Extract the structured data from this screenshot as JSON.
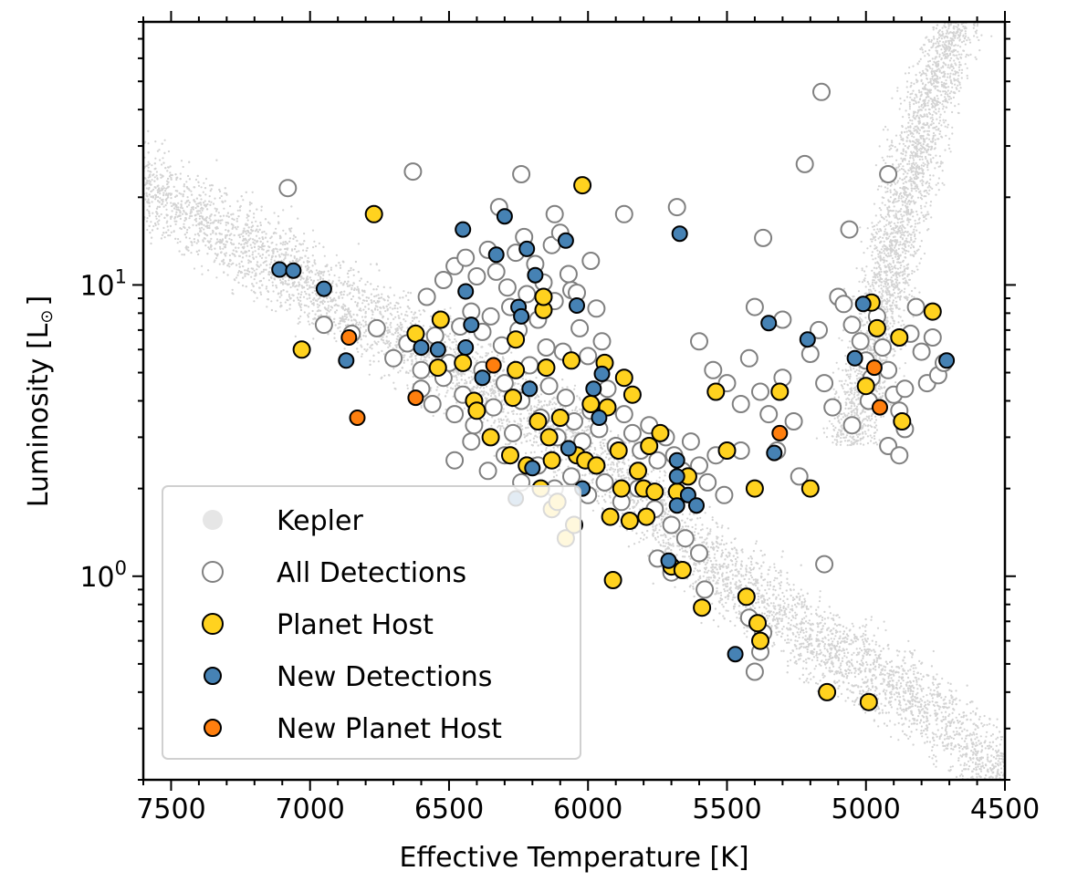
{
  "chart_data": {
    "type": "scatter",
    "title": "",
    "xlabel": "Effective Temperature [K]",
    "ylabel": "Luminosity [L",
    "ylabel_symbol": "⊙",
    "ylabel_close": "]",
    "x_reversed": true,
    "xlim": [
      7600,
      4500
    ],
    "ylim": [
      0.2,
      80
    ],
    "yscale": "log",
    "xticks": [
      7500,
      7000,
      6500,
      6000,
      5500,
      5000,
      4500
    ],
    "ytick_labels": [
      {
        "value": 1,
        "base": "10",
        "exp": "0"
      },
      {
        "value": 10,
        "base": "10",
        "exp": "1"
      }
    ],
    "legend_position": "lower-left",
    "series": [
      {
        "name": "Kepler",
        "key": "kepler",
        "color": "#d3d3d3",
        "edge": "none",
        "style": "background-dots"
      },
      {
        "name": "All Detections",
        "key": "all",
        "color": "#ffffff",
        "edge": "#808080",
        "points": [
          [
            7080,
            21.5
          ],
          [
            6630,
            24.5
          ],
          [
            6240,
            24
          ],
          [
            6320,
            18.5
          ],
          [
            6120,
            17.5
          ],
          [
            5680,
            18.5
          ],
          [
            5870,
            17.5
          ],
          [
            5370,
            14.5
          ],
          [
            5220,
            26
          ],
          [
            5160,
            46
          ],
          [
            4920,
            24
          ],
          [
            5060,
            15.5
          ],
          [
            6950,
            7.3
          ],
          [
            6850,
            6.8
          ],
          [
            6760,
            7.1
          ],
          [
            6700,
            5.6
          ],
          [
            6650,
            6.3
          ],
          [
            6600,
            5.1
          ],
          [
            6550,
            6.7
          ],
          [
            6500,
            5.4
          ],
          [
            6460,
            7.2
          ],
          [
            6420,
            8.1
          ],
          [
            6380,
            6.9
          ],
          [
            6350,
            7.8
          ],
          [
            6310,
            6.2
          ],
          [
            6280,
            8.4
          ],
          [
            6250,
            7.0
          ],
          [
            6220,
            9.3
          ],
          [
            6180,
            7.6
          ],
          [
            6150,
            6.1
          ],
          [
            6120,
            8.8
          ],
          [
            6090,
            5.9
          ],
          [
            6060,
            9.6
          ],
          [
            6030,
            7.1
          ],
          [
            6000,
            5.7
          ],
          [
            5970,
            8.3
          ],
          [
            5950,
            6.4
          ],
          [
            6580,
            9.1
          ],
          [
            6520,
            10.4
          ],
          [
            6480,
            11.6
          ],
          [
            6440,
            12.4
          ],
          [
            6400,
            10.7
          ],
          [
            6360,
            13.2
          ],
          [
            6330,
            11.1
          ],
          [
            6290,
            9.8
          ],
          [
            6260,
            12.9
          ],
          [
            6230,
            14.6
          ],
          [
            6190,
            11.8
          ],
          [
            6160,
            10.2
          ],
          [
            6130,
            13.7
          ],
          [
            6100,
            15.1
          ],
          [
            6070,
            10.9
          ],
          [
            6040,
            9.4
          ],
          [
            5990,
            12.1
          ],
          [
            6600,
            4.4
          ],
          [
            6560,
            3.9
          ],
          [
            6520,
            4.8
          ],
          [
            6480,
            3.6
          ],
          [
            6450,
            4.2
          ],
          [
            6410,
            3.3
          ],
          [
            6380,
            5.1
          ],
          [
            6340,
            3.8
          ],
          [
            6300,
            4.6
          ],
          [
            6270,
            3.1
          ],
          [
            6240,
            4.0
          ],
          [
            6210,
            5.3
          ],
          [
            6170,
            3.5
          ],
          [
            6140,
            4.5
          ],
          [
            6110,
            3.0
          ],
          [
            6080,
            4.1
          ],
          [
            6050,
            3.4
          ],
          [
            6020,
            2.9
          ],
          [
            5990,
            3.7
          ],
          [
            5960,
            3.2
          ],
          [
            5930,
            4.4
          ],
          [
            5900,
            2.8
          ],
          [
            5870,
            3.6
          ],
          [
            5840,
            3.1
          ],
          [
            5810,
            2.7
          ],
          [
            5780,
            3.3
          ],
          [
            5750,
            2.5
          ],
          [
            5720,
            3.0
          ],
          [
            5690,
            2.6
          ],
          [
            5660,
            2.3
          ],
          [
            5630,
            2.9
          ],
          [
            5600,
            2.4
          ],
          [
            5570,
            2.1
          ],
          [
            5540,
            2.6
          ],
          [
            5510,
            1.9
          ],
          [
            6480,
            2.5
          ],
          [
            6420,
            2.9
          ],
          [
            6360,
            2.3
          ],
          [
            6300,
            2.6
          ],
          [
            6240,
            2.1
          ],
          [
            6180,
            2.4
          ],
          [
            6120,
            2.0
          ],
          [
            6060,
            2.2
          ],
          [
            6000,
            1.9
          ],
          [
            5940,
            2.1
          ],
          [
            5880,
            1.8
          ],
          [
            5820,
            2.0
          ],
          [
            5760,
            1.7
          ],
          [
            5700,
            1.5
          ],
          [
            5650,
            1.35
          ],
          [
            5600,
            1.2
          ],
          [
            5750,
            1.15
          ],
          [
            5700,
            1.03
          ],
          [
            5580,
            0.9
          ],
          [
            5420,
            0.72
          ],
          [
            5370,
            0.64
          ],
          [
            5380,
            0.55
          ],
          [
            5400,
            0.47
          ],
          [
            5150,
            1.1
          ],
          [
            5600,
            6.4
          ],
          [
            5550,
            5.1
          ],
          [
            5500,
            4.6
          ],
          [
            5450,
            3.9
          ],
          [
            5420,
            5.6
          ],
          [
            5380,
            4.3
          ],
          [
            5350,
            3.6
          ],
          [
            5320,
            2.7
          ],
          [
            5300,
            4.8
          ],
          [
            5260,
            3.4
          ],
          [
            5240,
            2.2
          ],
          [
            5400,
            8.4
          ],
          [
            5300,
            7.6
          ],
          [
            5450,
            2.7
          ],
          [
            5100,
            9.1
          ],
          [
            5080,
            8.6
          ],
          [
            5050,
            7.3
          ],
          [
            5020,
            6.4
          ],
          [
            5000,
            5.5
          ],
          [
            4980,
            4.8
          ],
          [
            4960,
            7.8
          ],
          [
            4940,
            6.1
          ],
          [
            4920,
            5.1
          ],
          [
            4900,
            4.2
          ],
          [
            4880,
            3.7
          ],
          [
            4860,
            3.2
          ],
          [
            4840,
            6.8
          ],
          [
            4820,
            8.4
          ],
          [
            4800,
            5.9
          ],
          [
            4780,
            4.6
          ],
          [
            4760,
            6.6
          ],
          [
            4740,
            4.9
          ],
          [
            4720,
            5.4
          ],
          [
            5150,
            4.6
          ],
          [
            5120,
            3.8
          ],
          [
            5050,
            3.3
          ],
          [
            4990,
            4.0
          ],
          [
            4920,
            2.8
          ],
          [
            4880,
            2.6
          ],
          [
            5200,
            5.8
          ],
          [
            5170,
            7.0
          ],
          [
            4860,
            4.4
          ]
        ]
      },
      {
        "name": "Planet Host",
        "key": "host",
        "color": "#ffd21f",
        "edge": "#000000",
        "points": [
          [
            6020,
            22
          ],
          [
            6770,
            17.5
          ],
          [
            7030,
            6.0
          ],
          [
            6620,
            6.8
          ],
          [
            6530,
            7.6
          ],
          [
            6540,
            5.2
          ],
          [
            6450,
            5.4
          ],
          [
            6410,
            4.0
          ],
          [
            6400,
            3.7
          ],
          [
            6350,
            3.0
          ],
          [
            6280,
            2.6
          ],
          [
            6270,
            4.1
          ],
          [
            6260,
            5.1
          ],
          [
            6260,
            6.5
          ],
          [
            6220,
            2.4
          ],
          [
            6180,
            3.4
          ],
          [
            6170,
            2.0
          ],
          [
            6160,
            8.2
          ],
          [
            6160,
            9.1
          ],
          [
            6150,
            5.2
          ],
          [
            6140,
            3.0
          ],
          [
            6130,
            2.5
          ],
          [
            6130,
            1.7
          ],
          [
            6110,
            1.8
          ],
          [
            6100,
            3.5
          ],
          [
            6080,
            1.35
          ],
          [
            6060,
            5.5
          ],
          [
            6050,
            1.5
          ],
          [
            6040,
            2.6
          ],
          [
            6010,
            2.5
          ],
          [
            5990,
            3.9
          ],
          [
            5970,
            2.4
          ],
          [
            5940,
            5.4
          ],
          [
            5930,
            3.8
          ],
          [
            5920,
            1.6
          ],
          [
            5910,
            0.97
          ],
          [
            5890,
            2.7
          ],
          [
            5880,
            2.0
          ],
          [
            5870,
            4.8
          ],
          [
            5850,
            1.55
          ],
          [
            5840,
            4.2
          ],
          [
            5820,
            2.3
          ],
          [
            5800,
            2.0
          ],
          [
            5790,
            1.6
          ],
          [
            5780,
            2.8
          ],
          [
            5760,
            1.95
          ],
          [
            5740,
            3.1
          ],
          [
            5700,
            1.08
          ],
          [
            5680,
            1.95
          ],
          [
            5660,
            1.05
          ],
          [
            5640,
            2.2
          ],
          [
            5590,
            0.78
          ],
          [
            5540,
            4.3
          ],
          [
            5500,
            2.7
          ],
          [
            5430,
            0.85
          ],
          [
            5400,
            2.0
          ],
          [
            5390,
            0.69
          ],
          [
            5380,
            0.6
          ],
          [
            5310,
            4.3
          ],
          [
            5200,
            2.0
          ],
          [
            5140,
            0.4
          ],
          [
            5000,
            4.5
          ],
          [
            4990,
            0.37
          ],
          [
            4980,
            8.7
          ],
          [
            4960,
            7.1
          ],
          [
            4880,
            6.6
          ],
          [
            4870,
            3.4
          ],
          [
            4760,
            8.1
          ]
        ]
      },
      {
        "name": "New Detections",
        "key": "newdet",
        "color": "#4682b4",
        "edge": "#000000",
        "points": [
          [
            7110,
            11.3
          ],
          [
            7060,
            11.2
          ],
          [
            6950,
            9.7
          ],
          [
            6870,
            5.5
          ],
          [
            6600,
            6.1
          ],
          [
            6540,
            6.0
          ],
          [
            6450,
            15.5
          ],
          [
            6440,
            9.5
          ],
          [
            6440,
            6.1
          ],
          [
            6420,
            7.3
          ],
          [
            6380,
            4.8
          ],
          [
            6330,
            12.7
          ],
          [
            6300,
            17.2
          ],
          [
            6260,
            1.85
          ],
          [
            6250,
            8.4
          ],
          [
            6240,
            7.8
          ],
          [
            6220,
            13.3
          ],
          [
            6210,
            4.4
          ],
          [
            6200,
            2.35
          ],
          [
            6190,
            10.8
          ],
          [
            6080,
            14.2
          ],
          [
            6070,
            2.75
          ],
          [
            6040,
            8.5
          ],
          [
            6020,
            2.0
          ],
          [
            5980,
            4.4
          ],
          [
            5960,
            3.5
          ],
          [
            5950,
            4.95
          ],
          [
            5710,
            1.13
          ],
          [
            5680,
            2.2
          ],
          [
            5680,
            2.5
          ],
          [
            5680,
            1.75
          ],
          [
            5670,
            15
          ],
          [
            5640,
            1.9
          ],
          [
            5610,
            1.75
          ],
          [
            5470,
            0.54
          ],
          [
            5350,
            7.4
          ],
          [
            5330,
            2.65
          ],
          [
            5210,
            6.5
          ],
          [
            5040,
            5.6
          ],
          [
            5010,
            8.6
          ],
          [
            4710,
            5.5
          ]
        ]
      },
      {
        "name": "New Planet Host",
        "key": "newhost",
        "color": "#ff7f0e",
        "edge": "#000000",
        "points": [
          [
            6860,
            6.6
          ],
          [
            6830,
            3.5
          ],
          [
            6620,
            4.1
          ],
          [
            6340,
            5.3
          ],
          [
            5310,
            3.1
          ],
          [
            4970,
            5.2
          ],
          [
            4950,
            3.8
          ]
        ]
      }
    ]
  }
}
